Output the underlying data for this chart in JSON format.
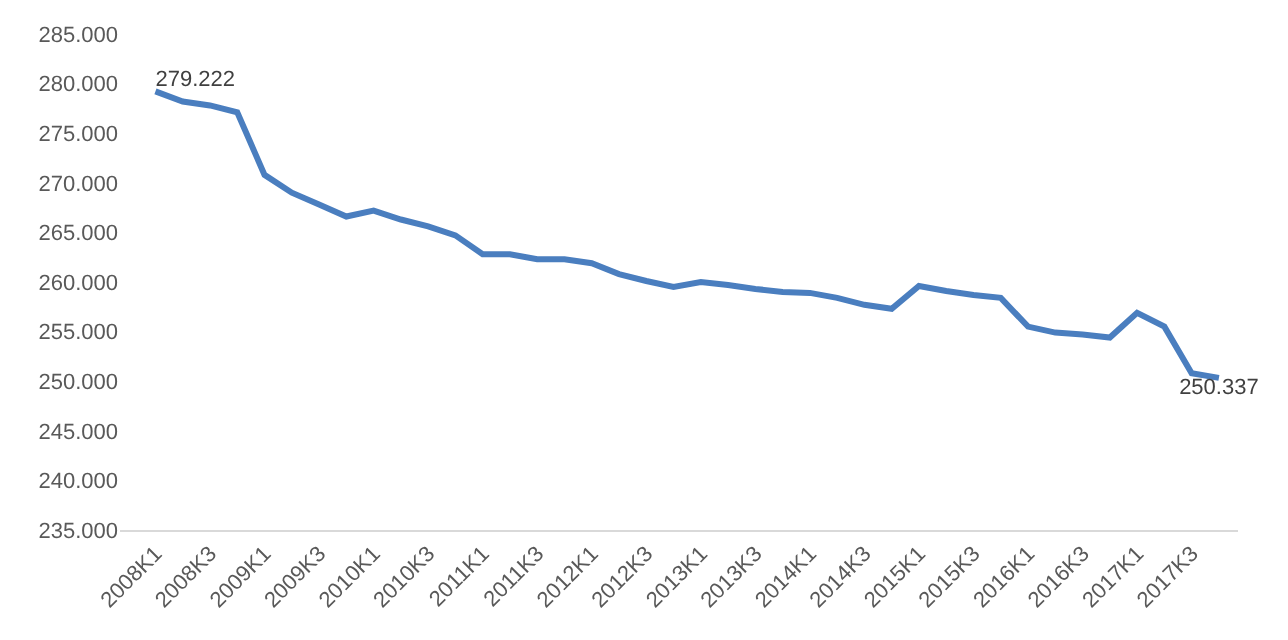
{
  "chart_data": {
    "type": "line",
    "categories": [
      "2008K1",
      null,
      "2008K3",
      null,
      "2009K1",
      null,
      "2009K3",
      null,
      "2010K1",
      null,
      "2010K3",
      null,
      "2011K1",
      null,
      "2011K3",
      null,
      "2012K1",
      null,
      "2012K3",
      null,
      "2013K1",
      null,
      "2013K3",
      null,
      "2014K1",
      null,
      "2014K3",
      null,
      "2015K1",
      null,
      "2015K3",
      null,
      "2016K1",
      null,
      "2016K3",
      null,
      "2017K1",
      null,
      "2017K3",
      null
    ],
    "series": [
      {
        "color": "#4a7ebf",
        "values": [
          279.222,
          278.2,
          277.8,
          277.1,
          270.8,
          269.0,
          267.8,
          266.6,
          267.2,
          266.3,
          265.6,
          264.7,
          262.8,
          262.8,
          262.3,
          262.3,
          261.9,
          260.8,
          260.1,
          259.5,
          260.0,
          259.7,
          259.3,
          259.0,
          258.9,
          258.4,
          257.7,
          257.3,
          259.6,
          259.1,
          258.7,
          258.4,
          255.5,
          254.9,
          254.7,
          254.4,
          256.9,
          255.5,
          250.8,
          250.337
        ],
        "value_labels": [
          "279.222",
          null,
          null,
          null,
          null,
          null,
          null,
          null,
          null,
          null,
          null,
          null,
          null,
          null,
          null,
          null,
          null,
          null,
          null,
          null,
          null,
          null,
          null,
          null,
          null,
          null,
          null,
          null,
          null,
          null,
          null,
          null,
          null,
          null,
          null,
          null,
          null,
          null,
          null,
          "250.337"
        ]
      }
    ],
    "ylim": [
      235,
      285
    ],
    "yticks": [
      {
        "value": 235,
        "label": "235.000"
      },
      {
        "value": 240,
        "label": "240.000"
      },
      {
        "value": 245,
        "label": "245.000"
      },
      {
        "value": 250,
        "label": "250.000"
      },
      {
        "value": 255,
        "label": "255.000"
      },
      {
        "value": 260,
        "label": "260.000"
      },
      {
        "value": 265,
        "label": "265.000"
      },
      {
        "value": 270,
        "label": "270.000"
      },
      {
        "value": 275,
        "label": "275.000"
      },
      {
        "value": 280,
        "label": "280.000"
      },
      {
        "value": 285,
        "label": "285.000"
      }
    ],
    "grid": false,
    "marker": "none",
    "line_style": "solid"
  }
}
